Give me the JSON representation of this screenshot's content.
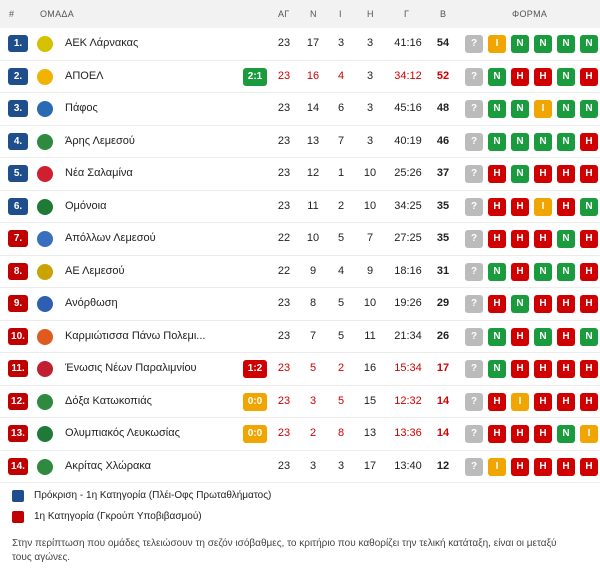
{
  "header": {
    "pos": "#",
    "team": "ΟΜΑΔΑ",
    "ag": "ΑΓ",
    "n": "Ν",
    "i": "Ι",
    "h": "Η",
    "g": "Γ",
    "b": "Β",
    "form": "ΦΟΡΜΑ"
  },
  "rows": [
    {
      "pos": "1.",
      "zone": "blue",
      "team": "ΑΕΚ Λάρνακας",
      "logo_color": "#d4c100",
      "live": "",
      "ag": "23",
      "n": "17",
      "i": "3",
      "h": "3",
      "g": "41:16",
      "b": "54",
      "highlight": false,
      "form": [
        "?",
        "Ι",
        "Ν",
        "Ν",
        "Ν",
        "Ν"
      ]
    },
    {
      "pos": "2.",
      "zone": "blue",
      "team": "ΑΠΟΕΛ",
      "logo_color": "#f0b400",
      "live": "2:1",
      "live_color": "green",
      "ag": "23",
      "n": "16",
      "i": "4",
      "h": "3",
      "g": "34:12",
      "b": "52",
      "highlight": true,
      "form": [
        "?",
        "Ν",
        "Η",
        "Η",
        "Ν",
        "Η"
      ]
    },
    {
      "pos": "3.",
      "zone": "blue",
      "team": "Πάφος",
      "logo_color": "#2a6ab5",
      "live": "",
      "ag": "23",
      "n": "14",
      "i": "6",
      "h": "3",
      "g": "45:16",
      "b": "48",
      "highlight": false,
      "form": [
        "?",
        "Ν",
        "Ν",
        "Ι",
        "Ν",
        "Ν"
      ]
    },
    {
      "pos": "4.",
      "zone": "blue",
      "team": "Άρης Λεμεσού",
      "logo_color": "#2e8a3e",
      "live": "",
      "ag": "23",
      "n": "13",
      "i": "7",
      "h": "3",
      "g": "40:19",
      "b": "46",
      "highlight": false,
      "form": [
        "?",
        "Ν",
        "Ν",
        "Ν",
        "Ν",
        "Η"
      ]
    },
    {
      "pos": "5.",
      "zone": "blue",
      "team": "Νέα Σαλαμίνα",
      "logo_color": "#d02030",
      "live": "",
      "ag": "23",
      "n": "12",
      "i": "1",
      "h": "10",
      "g": "25:26",
      "b": "37",
      "highlight": false,
      "form": [
        "?",
        "Η",
        "Ν",
        "Η",
        "Η",
        "Η"
      ]
    },
    {
      "pos": "6.",
      "zone": "blue",
      "team": "Ομόνοια",
      "logo_color": "#1e7a35",
      "live": "",
      "ag": "23",
      "n": "11",
      "i": "2",
      "h": "10",
      "g": "34:25",
      "b": "35",
      "highlight": false,
      "form": [
        "?",
        "Η",
        "Η",
        "Ι",
        "Η",
        "Ν"
      ]
    },
    {
      "pos": "7.",
      "zone": "red",
      "team": "Απόλλων Λεμεσού",
      "logo_color": "#3a6fc0",
      "live": "",
      "ag": "22",
      "n": "10",
      "i": "5",
      "h": "7",
      "g": "27:25",
      "b": "35",
      "highlight": false,
      "form": [
        "?",
        "Η",
        "Η",
        "Η",
        "Ν",
        "Η"
      ]
    },
    {
      "pos": "8.",
      "zone": "red",
      "team": "ΑΕ Λεμεσού",
      "logo_color": "#c9a400",
      "live": "",
      "ag": "22",
      "n": "9",
      "i": "4",
      "h": "9",
      "g": "18:16",
      "b": "31",
      "highlight": false,
      "form": [
        "?",
        "Ν",
        "Η",
        "Ν",
        "Ν",
        "Η"
      ]
    },
    {
      "pos": "9.",
      "zone": "red",
      "team": "Ανόρθωση",
      "logo_color": "#2f5fb0",
      "live": "",
      "ag": "23",
      "n": "8",
      "i": "5",
      "h": "10",
      "g": "19:26",
      "b": "29",
      "highlight": false,
      "form": [
        "?",
        "Η",
        "Ν",
        "Η",
        "Η",
        "Η"
      ]
    },
    {
      "pos": "10.",
      "zone": "red",
      "team": "Καρμιώτισσα Πάνω Πολεμι...",
      "logo_color": "#e05a20",
      "live": "",
      "ag": "23",
      "n": "7",
      "i": "5",
      "h": "11",
      "g": "21:34",
      "b": "26",
      "highlight": false,
      "form": [
        "?",
        "Ν",
        "Η",
        "Ν",
        "Η",
        "Ν"
      ]
    },
    {
      "pos": "11.",
      "zone": "red",
      "team": "Ένωσις Νέων Παραλιμνίου",
      "logo_color": "#c02030",
      "live": "1:2",
      "live_color": "red",
      "ag": "23",
      "n": "5",
      "i": "2",
      "h": "16",
      "g": "15:34",
      "b": "17",
      "highlight": true,
      "form": [
        "?",
        "Ν",
        "Η",
        "Η",
        "Η",
        "Η"
      ]
    },
    {
      "pos": "12.",
      "zone": "red",
      "team": "Δόξα Κατωκοπιάς",
      "logo_color": "#2e8a3e",
      "live": "0:0",
      "live_color": "orange",
      "ag": "23",
      "n": "3",
      "i": "5",
      "h": "15",
      "g": "12:32",
      "b": "14",
      "highlight": true,
      "form": [
        "?",
        "Η",
        "Ι",
        "Η",
        "Η",
        "Η"
      ]
    },
    {
      "pos": "13.",
      "zone": "red",
      "team": "Ολυμπιακός Λευκωσίας",
      "logo_color": "#1f7a3a",
      "live": "0:0",
      "live_color": "orange",
      "ag": "23",
      "n": "2",
      "i": "8",
      "h": "13",
      "g": "13:36",
      "b": "14",
      "highlight": true,
      "form": [
        "?",
        "Η",
        "Η",
        "Η",
        "Ν",
        "Ι"
      ]
    },
    {
      "pos": "14.",
      "zone": "red",
      "team": "Ακρίτας Χλώρακα",
      "logo_color": "#2e8a3e",
      "live": "",
      "ag": "23",
      "n": "3",
      "i": "3",
      "h": "17",
      "g": "13:40",
      "b": "12",
      "highlight": false,
      "form": [
        "?",
        "Ι",
        "Η",
        "Η",
        "Η",
        "Η"
      ]
    }
  ],
  "legend": [
    {
      "color": "#1f4e8c",
      "text": "Πρόκριση - 1η Κατηγορία (Πλέι-Οφς Πρωταθλήματος)"
    },
    {
      "color": "#c00000",
      "text": "1η Κατηγορία (Γκρούπ Υποβιβασμού)"
    }
  ],
  "note": "Στην περίπτωση που ομάδες τελειώσουν τη σεζόν ισόβαθμες, το κριτήριο που καθορίζει την τελική κατάταξη, είναι οι μεταξύ τους αγώνες."
}
